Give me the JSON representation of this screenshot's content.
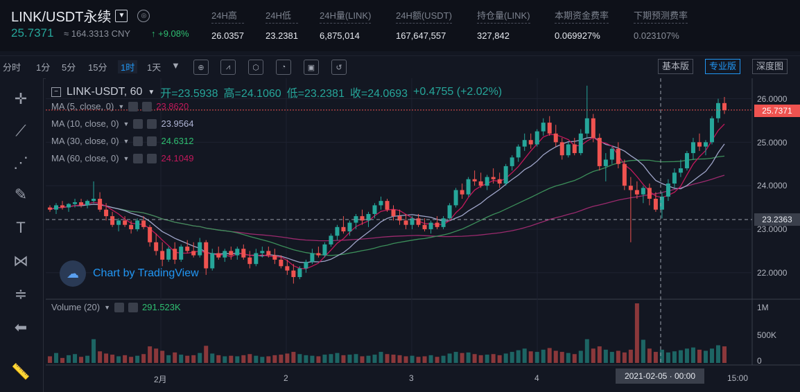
{
  "symbol": {
    "name": "LINK/USDT永续",
    "dropdown_icon": "chevron-down-icon",
    "compare_icon": "compass-icon"
  },
  "quote": {
    "last_price": "25.7371",
    "cny": "≈ 164.3313 CNY",
    "change": "↑ +9.08%"
  },
  "stats": [
    {
      "label": "24H高",
      "value": "26.0357"
    },
    {
      "label": "24H低",
      "value": "23.2381"
    },
    {
      "label": "24H量(LINK)",
      "value": "6,875,014"
    },
    {
      "label": "24H额(USDT)",
      "value": "167,647,557"
    },
    {
      "label": "持仓量(LINK)",
      "value": "327,842"
    },
    {
      "label": "本期资金费率",
      "value": "0.069927%"
    },
    {
      "label": "下期预测费率",
      "value": "0.023107%"
    }
  ],
  "toolbar": {
    "intervals": [
      "分时",
      "1分",
      "5分",
      "15分",
      "1时",
      "1天"
    ],
    "active_interval": "1时",
    "views": [
      "基本版",
      "专业版",
      "深度图"
    ],
    "active_view": "专业版"
  },
  "legend": {
    "main": {
      "title": "LINK-USDT, 60",
      "open": "开=23.5938",
      "high": "高=24.1060",
      "low": "低=23.2381",
      "close": "收=24.0693",
      "change": "+0.4755 (+2.02%)"
    },
    "ma": [
      {
        "label": "MA (5, close, 0)",
        "value": "23.8620",
        "color": "#c2185b"
      },
      {
        "label": "MA (10, close, 0)",
        "value": "23.9564",
        "color": "#b0b6d6"
      },
      {
        "label": "MA (30, close, 0)",
        "value": "24.6312",
        "color": "#2fbf71"
      },
      {
        "label": "MA (60, close, 0)",
        "value": "24.1049",
        "color": "#c2185b"
      }
    ],
    "volume": {
      "label": "Volume (20)",
      "value": "291.523K"
    }
  },
  "watermark": "Chart by TradingView",
  "colors": {
    "up": "#26a69a",
    "down": "#ef5350",
    "ma5": "#c2185b",
    "ma10": "#9fa5c9",
    "ma30": "#3c8f5a",
    "ma60": "#9c2a6e",
    "accent": "#2196f3"
  },
  "price_labels": {
    "last": "25.7371",
    "crosshair": "23.2363"
  },
  "axis": {
    "y_ticks": [
      "26.0000",
      "25.0000",
      "24.0000",
      "23.0000",
      "22.0000"
    ],
    "vol_ticks": [
      "1M",
      "500K",
      "0"
    ],
    "x_ticks": [
      "2月",
      "2",
      "3",
      "4",
      "15:00"
    ],
    "crosshair_time": "2021-02-05 · 00:00"
  },
  "chart_data": {
    "type": "candlestick",
    "interval": "60",
    "ylim": [
      21.5,
      26.3
    ],
    "candles": [
      [
        23.5,
        23.55,
        23.4,
        23.45
      ],
      [
        23.45,
        23.6,
        23.35,
        23.55
      ],
      [
        23.55,
        23.65,
        23.45,
        23.5
      ],
      [
        23.5,
        23.6,
        23.4,
        23.58
      ],
      [
        23.58,
        23.7,
        23.5,
        23.62
      ],
      [
        23.62,
        23.7,
        23.5,
        23.55
      ],
      [
        23.55,
        23.68,
        23.48,
        23.65
      ],
      [
        23.65,
        24.1,
        23.6,
        23.7
      ],
      [
        23.7,
        23.85,
        23.4,
        23.45
      ],
      [
        23.45,
        23.6,
        23.2,
        23.3
      ],
      [
        23.3,
        23.4,
        23.05,
        23.1
      ],
      [
        23.1,
        23.25,
        22.95,
        23.2
      ],
      [
        23.2,
        23.3,
        23.05,
        23.1
      ],
      [
        23.1,
        23.2,
        22.9,
        23.0
      ],
      [
        23.0,
        23.25,
        22.95,
        23.2
      ],
      [
        23.2,
        23.3,
        23.0,
        23.05
      ],
      [
        23.05,
        23.1,
        22.6,
        22.7
      ],
      [
        22.7,
        22.9,
        22.4,
        22.5
      ],
      [
        22.5,
        22.7,
        22.15,
        22.3
      ],
      [
        22.3,
        22.6,
        22.25,
        22.55
      ],
      [
        22.55,
        22.7,
        22.2,
        22.3
      ],
      [
        22.3,
        22.65,
        22.25,
        22.6
      ],
      [
        22.6,
        22.75,
        22.45,
        22.5
      ],
      [
        22.5,
        22.7,
        22.35,
        22.4
      ],
      [
        22.4,
        22.8,
        22.35,
        22.7
      ],
      [
        22.7,
        22.75,
        21.95,
        22.1
      ],
      [
        22.1,
        22.55,
        22.05,
        22.45
      ],
      [
        22.45,
        22.6,
        22.3,
        22.35
      ],
      [
        22.35,
        22.55,
        22.25,
        22.5
      ],
      [
        22.5,
        22.6,
        22.3,
        22.4
      ],
      [
        22.4,
        22.6,
        22.3,
        22.55
      ],
      [
        22.55,
        22.65,
        22.3,
        22.35
      ],
      [
        22.35,
        22.5,
        22.1,
        22.2
      ],
      [
        22.2,
        22.55,
        22.15,
        22.45
      ],
      [
        22.45,
        22.6,
        22.35,
        22.5
      ],
      [
        22.5,
        22.6,
        22.35,
        22.4
      ],
      [
        22.4,
        22.55,
        22.2,
        22.3
      ],
      [
        22.3,
        22.4,
        22.1,
        22.15
      ],
      [
        22.15,
        22.3,
        21.95,
        22.05
      ],
      [
        22.05,
        22.2,
        21.75,
        21.9
      ],
      [
        21.9,
        22.15,
        21.85,
        22.1
      ],
      [
        22.1,
        22.3,
        22.0,
        22.25
      ],
      [
        22.25,
        22.55,
        22.2,
        22.45
      ],
      [
        22.45,
        22.6,
        22.35,
        22.4
      ],
      [
        22.4,
        22.7,
        22.35,
        22.65
      ],
      [
        22.65,
        22.9,
        22.6,
        22.85
      ],
      [
        22.85,
        23.1,
        22.75,
        23.05
      ],
      [
        23.05,
        23.3,
        22.9,
        22.95
      ],
      [
        22.95,
        23.2,
        22.85,
        23.15
      ],
      [
        23.15,
        23.35,
        23.0,
        23.3
      ],
      [
        23.3,
        23.45,
        23.1,
        23.2
      ],
      [
        23.2,
        23.4,
        23.05,
        23.35
      ],
      [
        23.35,
        23.6,
        23.25,
        23.55
      ],
      [
        23.55,
        23.75,
        23.45,
        23.65
      ],
      [
        23.65,
        23.7,
        23.4,
        23.45
      ],
      [
        23.45,
        23.55,
        23.2,
        23.3
      ],
      [
        23.3,
        23.45,
        23.1,
        23.2
      ],
      [
        23.2,
        23.35,
        23.0,
        23.1
      ],
      [
        23.1,
        23.3,
        23.0,
        23.25
      ],
      [
        23.25,
        23.35,
        23.05,
        23.1
      ],
      [
        23.1,
        23.25,
        22.95,
        23.0
      ],
      [
        23.0,
        23.2,
        22.9,
        23.15
      ],
      [
        23.15,
        23.3,
        23.0,
        23.05
      ],
      [
        23.05,
        23.3,
        23.0,
        23.25
      ],
      [
        23.25,
        23.6,
        23.2,
        23.55
      ],
      [
        23.55,
        23.95,
        23.5,
        23.9
      ],
      [
        23.9,
        24.05,
        23.7,
        23.8
      ],
      [
        23.8,
        24.2,
        23.75,
        24.15
      ],
      [
        24.15,
        24.35,
        24.0,
        24.1
      ],
      [
        24.1,
        24.3,
        23.95,
        24.0
      ],
      [
        24.0,
        24.25,
        23.9,
        24.2
      ],
      [
        24.2,
        24.4,
        24.05,
        24.15
      ],
      [
        24.15,
        24.3,
        23.95,
        24.05
      ],
      [
        24.05,
        24.5,
        24.0,
        24.45
      ],
      [
        24.45,
        24.7,
        24.35,
        24.65
      ],
      [
        24.65,
        24.95,
        24.55,
        24.9
      ],
      [
        24.9,
        25.2,
        24.8,
        25.05
      ],
      [
        25.05,
        25.2,
        24.85,
        24.95
      ],
      [
        24.95,
        25.3,
        24.9,
        25.25
      ],
      [
        25.25,
        25.55,
        25.15,
        25.45
      ],
      [
        25.45,
        25.6,
        25.15,
        25.2
      ],
      [
        25.2,
        25.4,
        24.9,
        25.0
      ],
      [
        25.0,
        25.1,
        24.6,
        24.7
      ],
      [
        24.7,
        25.0,
        24.65,
        24.95
      ],
      [
        24.95,
        25.1,
        24.7,
        24.75
      ],
      [
        24.75,
        25.3,
        24.7,
        25.2
      ],
      [
        25.2,
        26.3,
        25.1,
        25.55
      ],
      [
        25.55,
        25.65,
        25.0,
        25.1
      ],
      [
        25.1,
        25.2,
        24.35,
        24.45
      ],
      [
        24.45,
        24.75,
        24.1,
        24.6
      ],
      [
        24.6,
        24.9,
        24.5,
        24.85
      ],
      [
        24.85,
        25.0,
        24.4,
        24.5
      ],
      [
        24.5,
        24.6,
        23.9,
        24.0
      ],
      [
        24.0,
        24.2,
        22.7,
        23.9
      ],
      [
        23.9,
        24.1,
        23.7,
        23.8
      ],
      [
        23.8,
        24.0,
        23.6,
        23.95
      ],
      [
        23.95,
        24.05,
        23.55,
        23.7
      ],
      [
        23.7,
        23.85,
        23.4,
        23.45
      ],
      [
        23.45,
        23.85,
        23.25,
        23.75
      ],
      [
        23.75,
        24.15,
        23.65,
        24.05
      ],
      [
        24.05,
        24.4,
        23.95,
        24.3
      ],
      [
        24.3,
        24.6,
        24.2,
        24.4
      ],
      [
        24.4,
        24.8,
        24.35,
        24.75
      ],
      [
        24.75,
        25.1,
        24.6,
        25.0
      ],
      [
        25.0,
        25.2,
        24.8,
        24.9
      ],
      [
        24.9,
        25.05,
        24.7,
        25.0
      ],
      [
        25.0,
        25.6,
        24.95,
        25.55
      ],
      [
        25.55,
        26.0,
        25.45,
        25.9
      ],
      [
        25.9,
        26.04,
        25.65,
        25.74
      ]
    ],
    "volume": [
      120,
      180,
      90,
      140,
      160,
      110,
      130,
      430,
      210,
      170,
      150,
      120,
      140,
      110,
      130,
      160,
      300,
      260,
      220,
      140,
      190,
      150,
      130,
      140,
      180,
      310,
      170,
      140,
      120,
      130,
      120,
      140,
      160,
      130,
      110,
      120,
      140,
      150,
      170,
      200,
      160,
      140,
      130,
      120,
      150,
      160,
      180,
      140,
      150,
      160,
      120,
      130,
      150,
      200,
      160,
      150,
      140,
      120,
      130,
      110,
      120,
      140,
      110,
      130,
      170,
      200,
      180,
      190,
      160,
      140,
      150,
      160,
      140,
      170,
      200,
      230,
      260,
      210,
      200,
      240,
      270,
      220,
      200,
      180,
      160,
      220,
      430,
      260,
      300,
      240,
      200,
      220,
      190,
      240,
      1080,
      420,
      260,
      200,
      240,
      190,
      210,
      230,
      260,
      280,
      240,
      220,
      260,
      320,
      300,
      150
    ]
  }
}
